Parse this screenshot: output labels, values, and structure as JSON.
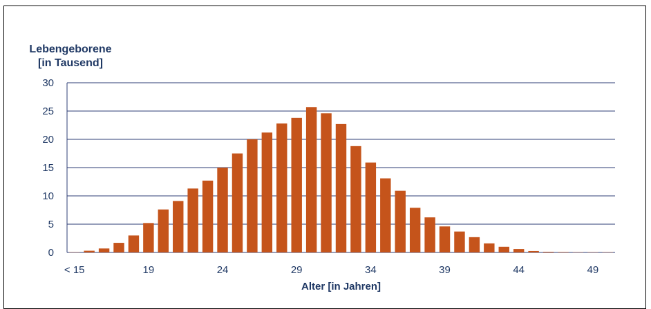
{
  "chart_data": {
    "type": "bar",
    "ylabel_lines": [
      "Lebengeborene",
      "[in Tausend]"
    ],
    "xlabel": "Alter [in Jahren]",
    "ylim": [
      0,
      30
    ],
    "y_ticks": [
      "0",
      "5",
      "10",
      "15",
      "20",
      "25",
      "30"
    ],
    "x_tick_labels": [
      {
        "category": "< 15",
        "label": "< 15"
      },
      {
        "category": "19",
        "label": "19"
      },
      {
        "category": "24",
        "label": "24"
      },
      {
        "category": "29",
        "label": "29"
      },
      {
        "category": "34",
        "label": "34"
      },
      {
        "category": "39",
        "label": "39"
      },
      {
        "category": "44",
        "label": "44"
      },
      {
        "category": "49",
        "label": "49"
      }
    ],
    "categories": [
      "< 15",
      "15",
      "16",
      "17",
      "18",
      "19",
      "20",
      "21",
      "22",
      "23",
      "24",
      "25",
      "26",
      "27",
      "28",
      "29",
      "30",
      "31",
      "32",
      "33",
      "34",
      "35",
      "36",
      "37",
      "38",
      "39",
      "40",
      "41",
      "42",
      "43",
      "44",
      "45",
      "46",
      "47",
      "48",
      "49",
      "50"
    ],
    "values": [
      0.05,
      0.3,
      0.7,
      1.7,
      3.0,
      5.2,
      7.6,
      9.1,
      11.3,
      12.7,
      15.0,
      17.5,
      20.0,
      21.2,
      22.8,
      23.8,
      25.7,
      24.6,
      22.7,
      18.8,
      15.9,
      13.1,
      10.9,
      7.9,
      6.2,
      4.6,
      3.7,
      2.7,
      1.6,
      1.0,
      0.6,
      0.25,
      0.12,
      0.08,
      0.05,
      0.05,
      0.05
    ],
    "colors": {
      "bar": "#c5541b",
      "grid": "#2e3c74",
      "text": "#1f3864"
    },
    "grid": true
  }
}
